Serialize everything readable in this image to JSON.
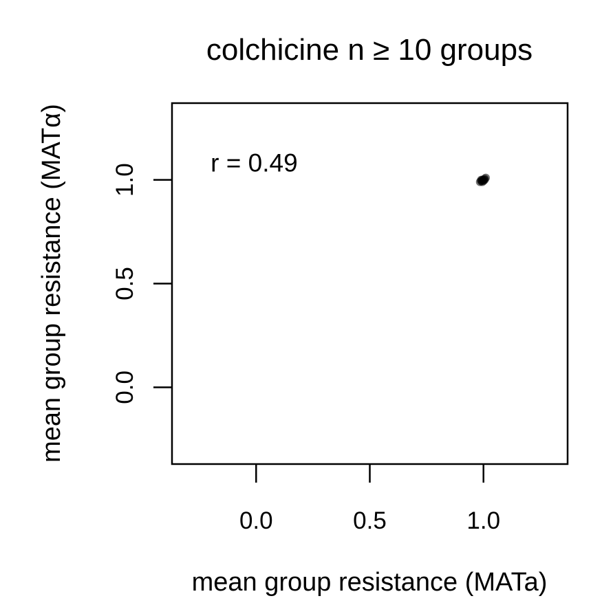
{
  "chart_data": {
    "type": "scatter",
    "title": "colchicine n ≥ 10 groups",
    "xlabel": "mean group resistance (MATa)",
    "ylabel": "mean group resistance (MATα)",
    "xlim": [
      -0.37,
      1.37
    ],
    "ylim": [
      -0.37,
      1.37
    ],
    "xticks": [
      0.0,
      0.5,
      1.0
    ],
    "yticks": [
      0.0,
      0.5,
      1.0
    ],
    "xtick_labels": [
      "0.0",
      "0.5",
      "1.0"
    ],
    "ytick_labels": [
      "0.0",
      "0.5",
      "1.0"
    ],
    "grid": false,
    "legend": "none",
    "annotations": [
      {
        "text": "r = 0.49",
        "x": -0.2,
        "y": 1.04
      }
    ],
    "series": [
      {
        "color": "#000000",
        "points": [
          {
            "x": 1.0,
            "y": 1.0
          },
          {
            "x": 0.99,
            "y": 0.995
          },
          {
            "x": 1.005,
            "y": 1.005
          },
          {
            "x": 0.995,
            "y": 1.0
          },
          {
            "x": 1.01,
            "y": 1.01
          },
          {
            "x": 0.985,
            "y": 0.99
          },
          {
            "x": 1.0,
            "y": 0.995
          },
          {
            "x": 0.995,
            "y": 0.99
          },
          {
            "x": 1.005,
            "y": 1.0
          },
          {
            "x": 0.99,
            "y": 1.0
          }
        ]
      }
    ]
  }
}
